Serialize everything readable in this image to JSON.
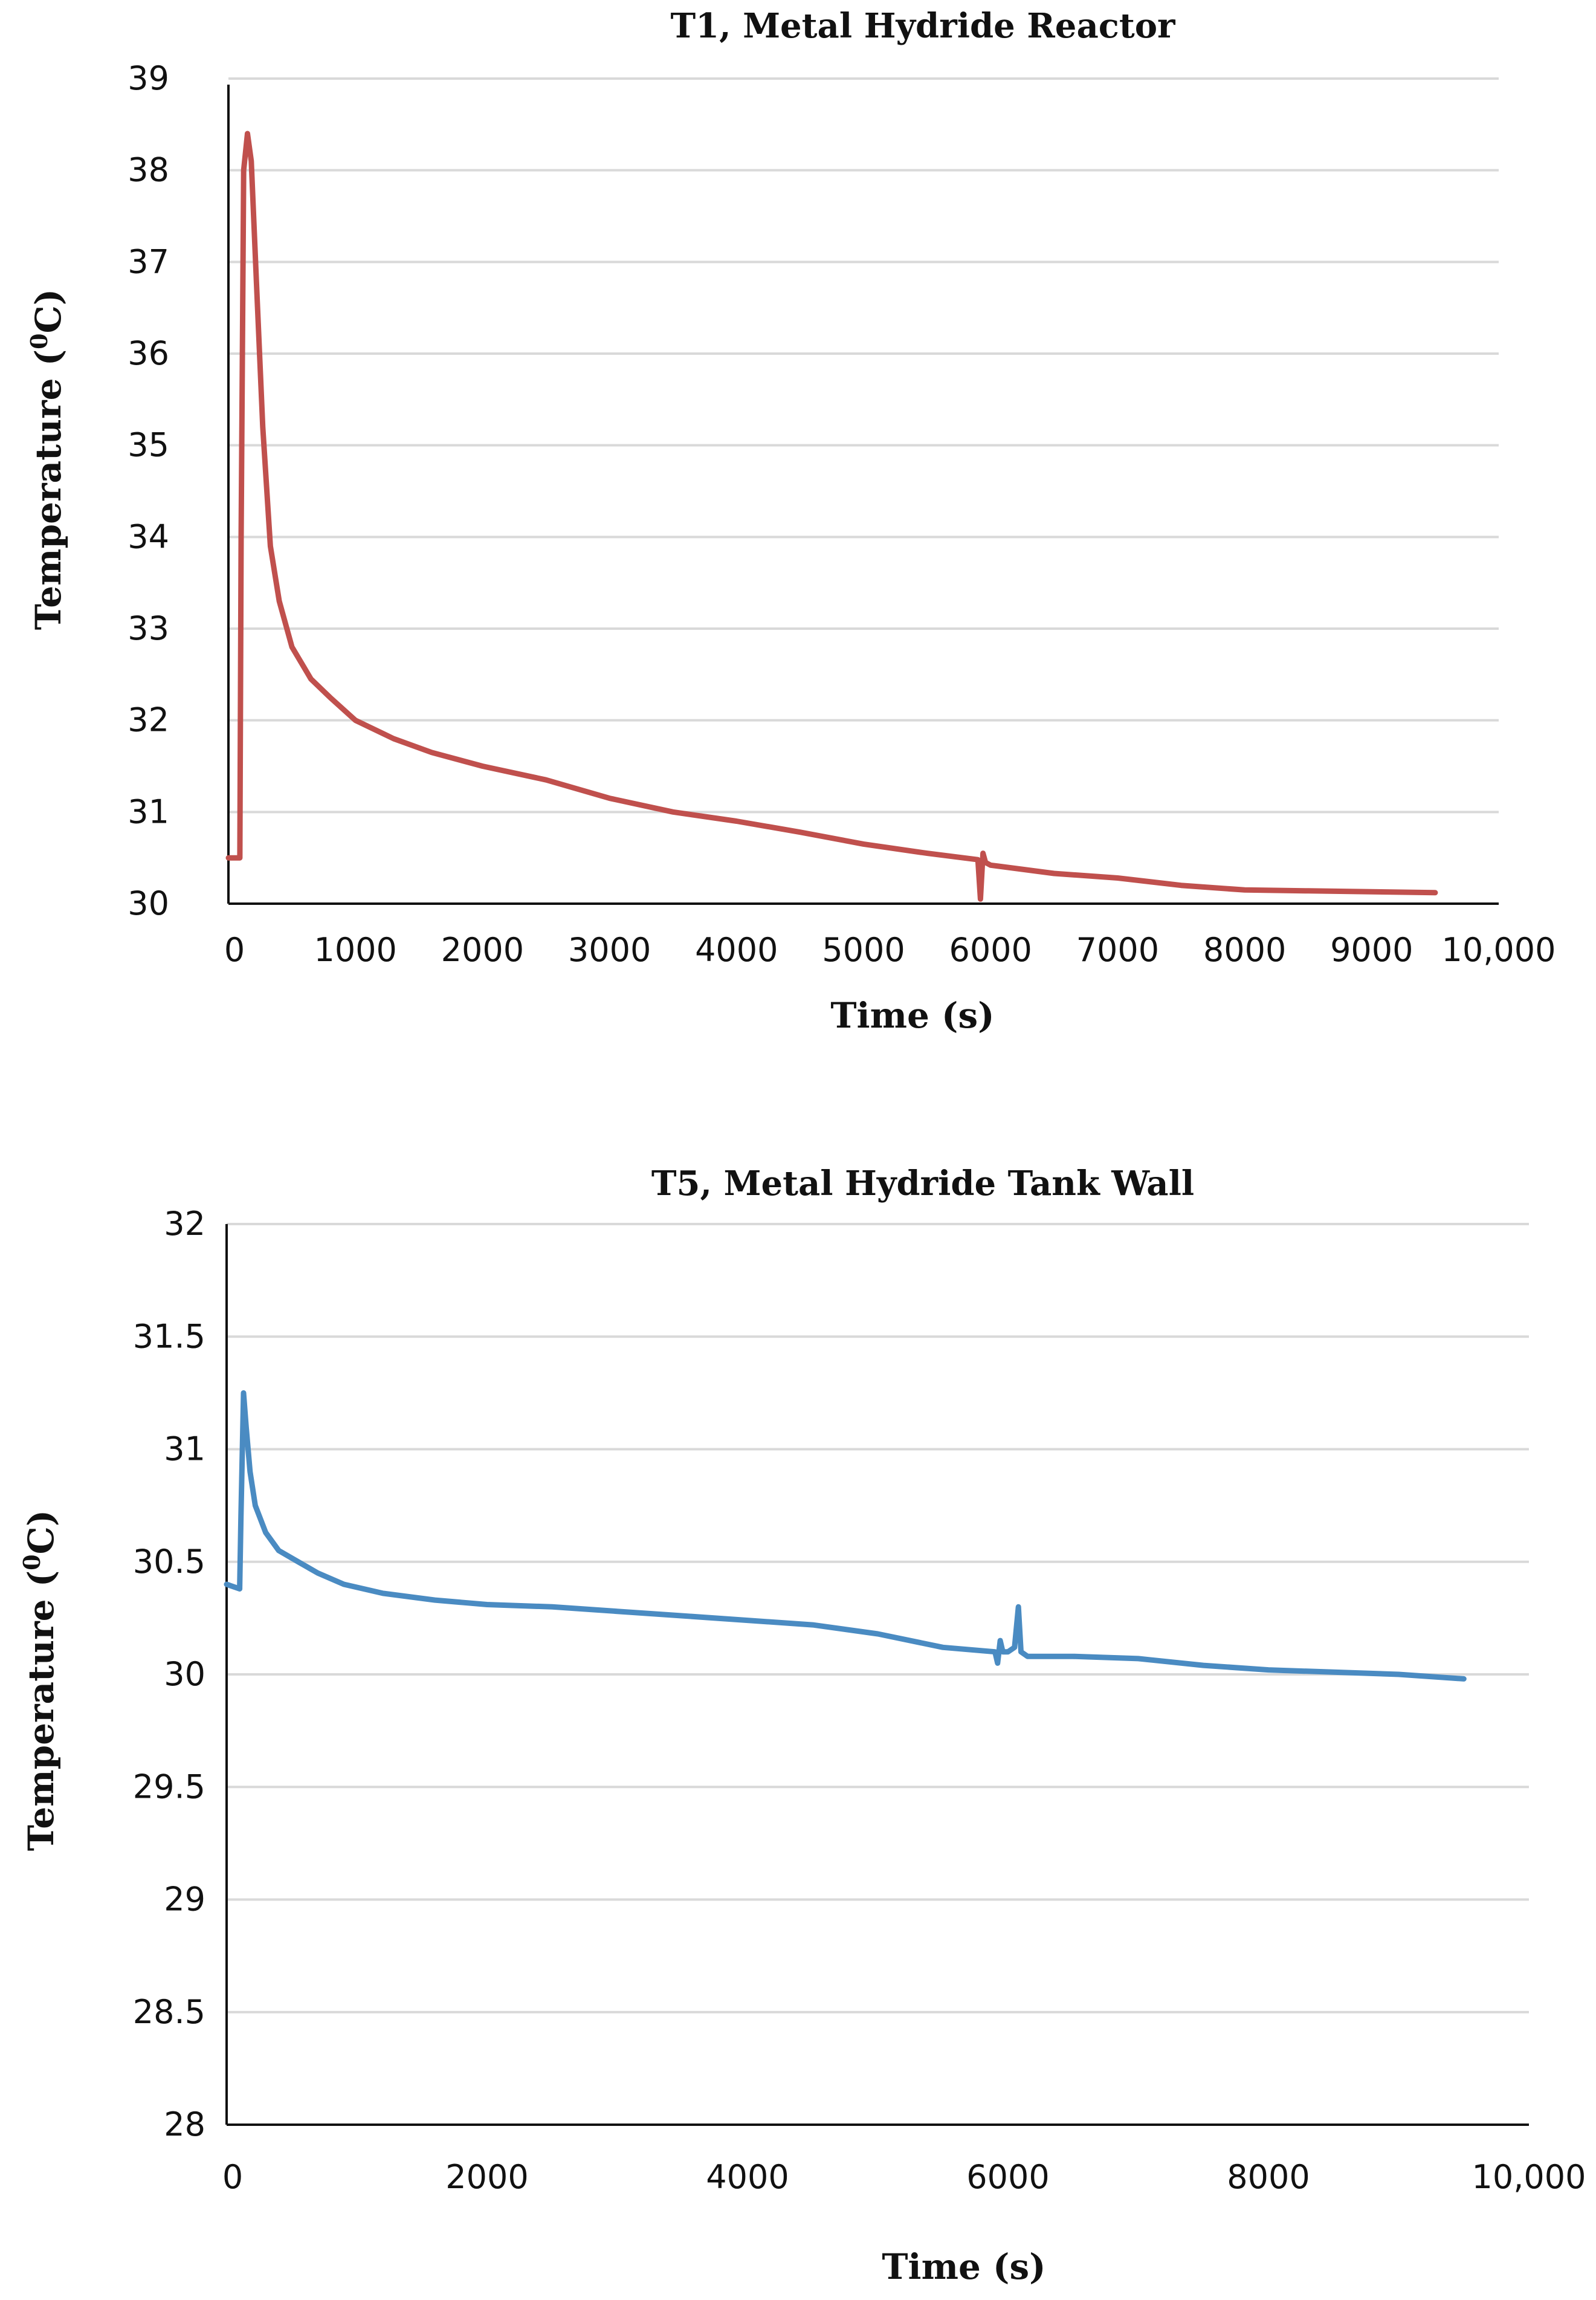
{
  "chart_data": [
    {
      "type": "line",
      "title": "T1, Metal Hydride Reactor",
      "xlabel": "Time (s)",
      "ylabel": "Temperature (0C)",
      "ylabel_base": "Temperature (",
      "ylabel_sup": "0",
      "ylabel_end": "C)",
      "xlim": [
        0,
        10000
      ],
      "ylim": [
        30,
        39
      ],
      "x_ticks": [
        {
          "value": 0,
          "label": "0"
        },
        {
          "value": 1000,
          "label": "1000"
        },
        {
          "value": 2000,
          "label": "2000"
        },
        {
          "value": 3000,
          "label": "3000"
        },
        {
          "value": 4000,
          "label": "4000"
        },
        {
          "value": 5000,
          "label": "5000"
        },
        {
          "value": 6000,
          "label": "6000"
        },
        {
          "value": 7000,
          "label": "7000"
        },
        {
          "value": 8000,
          "label": "8000"
        },
        {
          "value": 9000,
          "label": "9000"
        },
        {
          "value": 10000,
          "label": "10,000"
        }
      ],
      "y_ticks": [
        {
          "value": 30,
          "label": "30"
        },
        {
          "value": 31,
          "label": "31"
        },
        {
          "value": 32,
          "label": "32"
        },
        {
          "value": 33,
          "label": "33"
        },
        {
          "value": 34,
          "label": "34"
        },
        {
          "value": 35,
          "label": "35"
        },
        {
          "value": 36,
          "label": "36"
        },
        {
          "value": 37,
          "label": "37"
        },
        {
          "value": 38,
          "label": "38"
        },
        {
          "value": 39,
          "label": "39"
        }
      ],
      "grid": true,
      "color": "#c0504d",
      "series": [
        {
          "name": "T1",
          "x": [
            0,
            90,
            100,
            120,
            150,
            180,
            220,
            270,
            330,
            400,
            500,
            650,
            800,
            1000,
            1300,
            1600,
            2000,
            2500,
            3000,
            3500,
            4000,
            4500,
            5000,
            5500,
            5900,
            5920,
            5940,
            5960,
            6000,
            6500,
            7000,
            7500,
            8000,
            8500,
            9000,
            9500
          ],
          "y": [
            30.5,
            30.5,
            34.0,
            38.0,
            38.4,
            38.1,
            36.8,
            35.2,
            33.9,
            33.3,
            32.8,
            32.45,
            32.25,
            32.0,
            31.8,
            31.65,
            31.5,
            31.35,
            31.15,
            31.0,
            30.9,
            30.78,
            30.65,
            30.55,
            30.48,
            30.05,
            30.55,
            30.45,
            30.42,
            30.33,
            30.28,
            30.2,
            30.15,
            30.14,
            30.13,
            30.12
          ]
        }
      ]
    },
    {
      "type": "line",
      "title": "T5, Metal Hydride Tank Wall",
      "xlabel": "Time (s)",
      "ylabel": "Temperature (0C)",
      "ylabel_base": "Temperature (",
      "ylabel_sup": "0",
      "ylabel_end": "C)",
      "xlim": [
        0,
        10000
      ],
      "ylim": [
        28,
        32
      ],
      "x_ticks": [
        {
          "value": 0,
          "label": "0"
        },
        {
          "value": 2000,
          "label": "2000"
        },
        {
          "value": 4000,
          "label": "4000"
        },
        {
          "value": 6000,
          "label": "6000"
        },
        {
          "value": 8000,
          "label": "8000"
        },
        {
          "value": 10000,
          "label": "10,000"
        }
      ],
      "y_ticks": [
        {
          "value": 28,
          "label": "28"
        },
        {
          "value": 28.5,
          "label": "28.5"
        },
        {
          "value": 29,
          "label": "29"
        },
        {
          "value": 29.5,
          "label": "29.5"
        },
        {
          "value": 30,
          "label": "30"
        },
        {
          "value": 30.5,
          "label": "30.5"
        },
        {
          "value": 31,
          "label": "31"
        },
        {
          "value": 31.5,
          "label": "31.5"
        },
        {
          "value": 32,
          "label": "32"
        }
      ],
      "grid": true,
      "color": "#4a8bc2",
      "series": [
        {
          "name": "T5",
          "x": [
            0,
            100,
            110,
            130,
            150,
            180,
            220,
            300,
            400,
            550,
            700,
            900,
            1200,
            1600,
            2000,
            2500,
            3000,
            3500,
            4000,
            4500,
            5000,
            5500,
            5900,
            5920,
            5940,
            5960,
            6000,
            6050,
            6080,
            6100,
            6150,
            6500,
            7000,
            7500,
            8000,
            8500,
            9000,
            9500
          ],
          "y": [
            30.4,
            30.38,
            30.7,
            31.25,
            31.1,
            30.9,
            30.75,
            30.63,
            30.55,
            30.5,
            30.45,
            30.4,
            30.36,
            30.33,
            30.31,
            30.3,
            30.28,
            30.26,
            30.24,
            30.22,
            30.18,
            30.12,
            30.1,
            30.05,
            30.15,
            30.1,
            30.1,
            30.12,
            30.3,
            30.1,
            30.08,
            30.08,
            30.07,
            30.04,
            30.02,
            30.01,
            30.0,
            29.98
          ]
        }
      ]
    }
  ]
}
